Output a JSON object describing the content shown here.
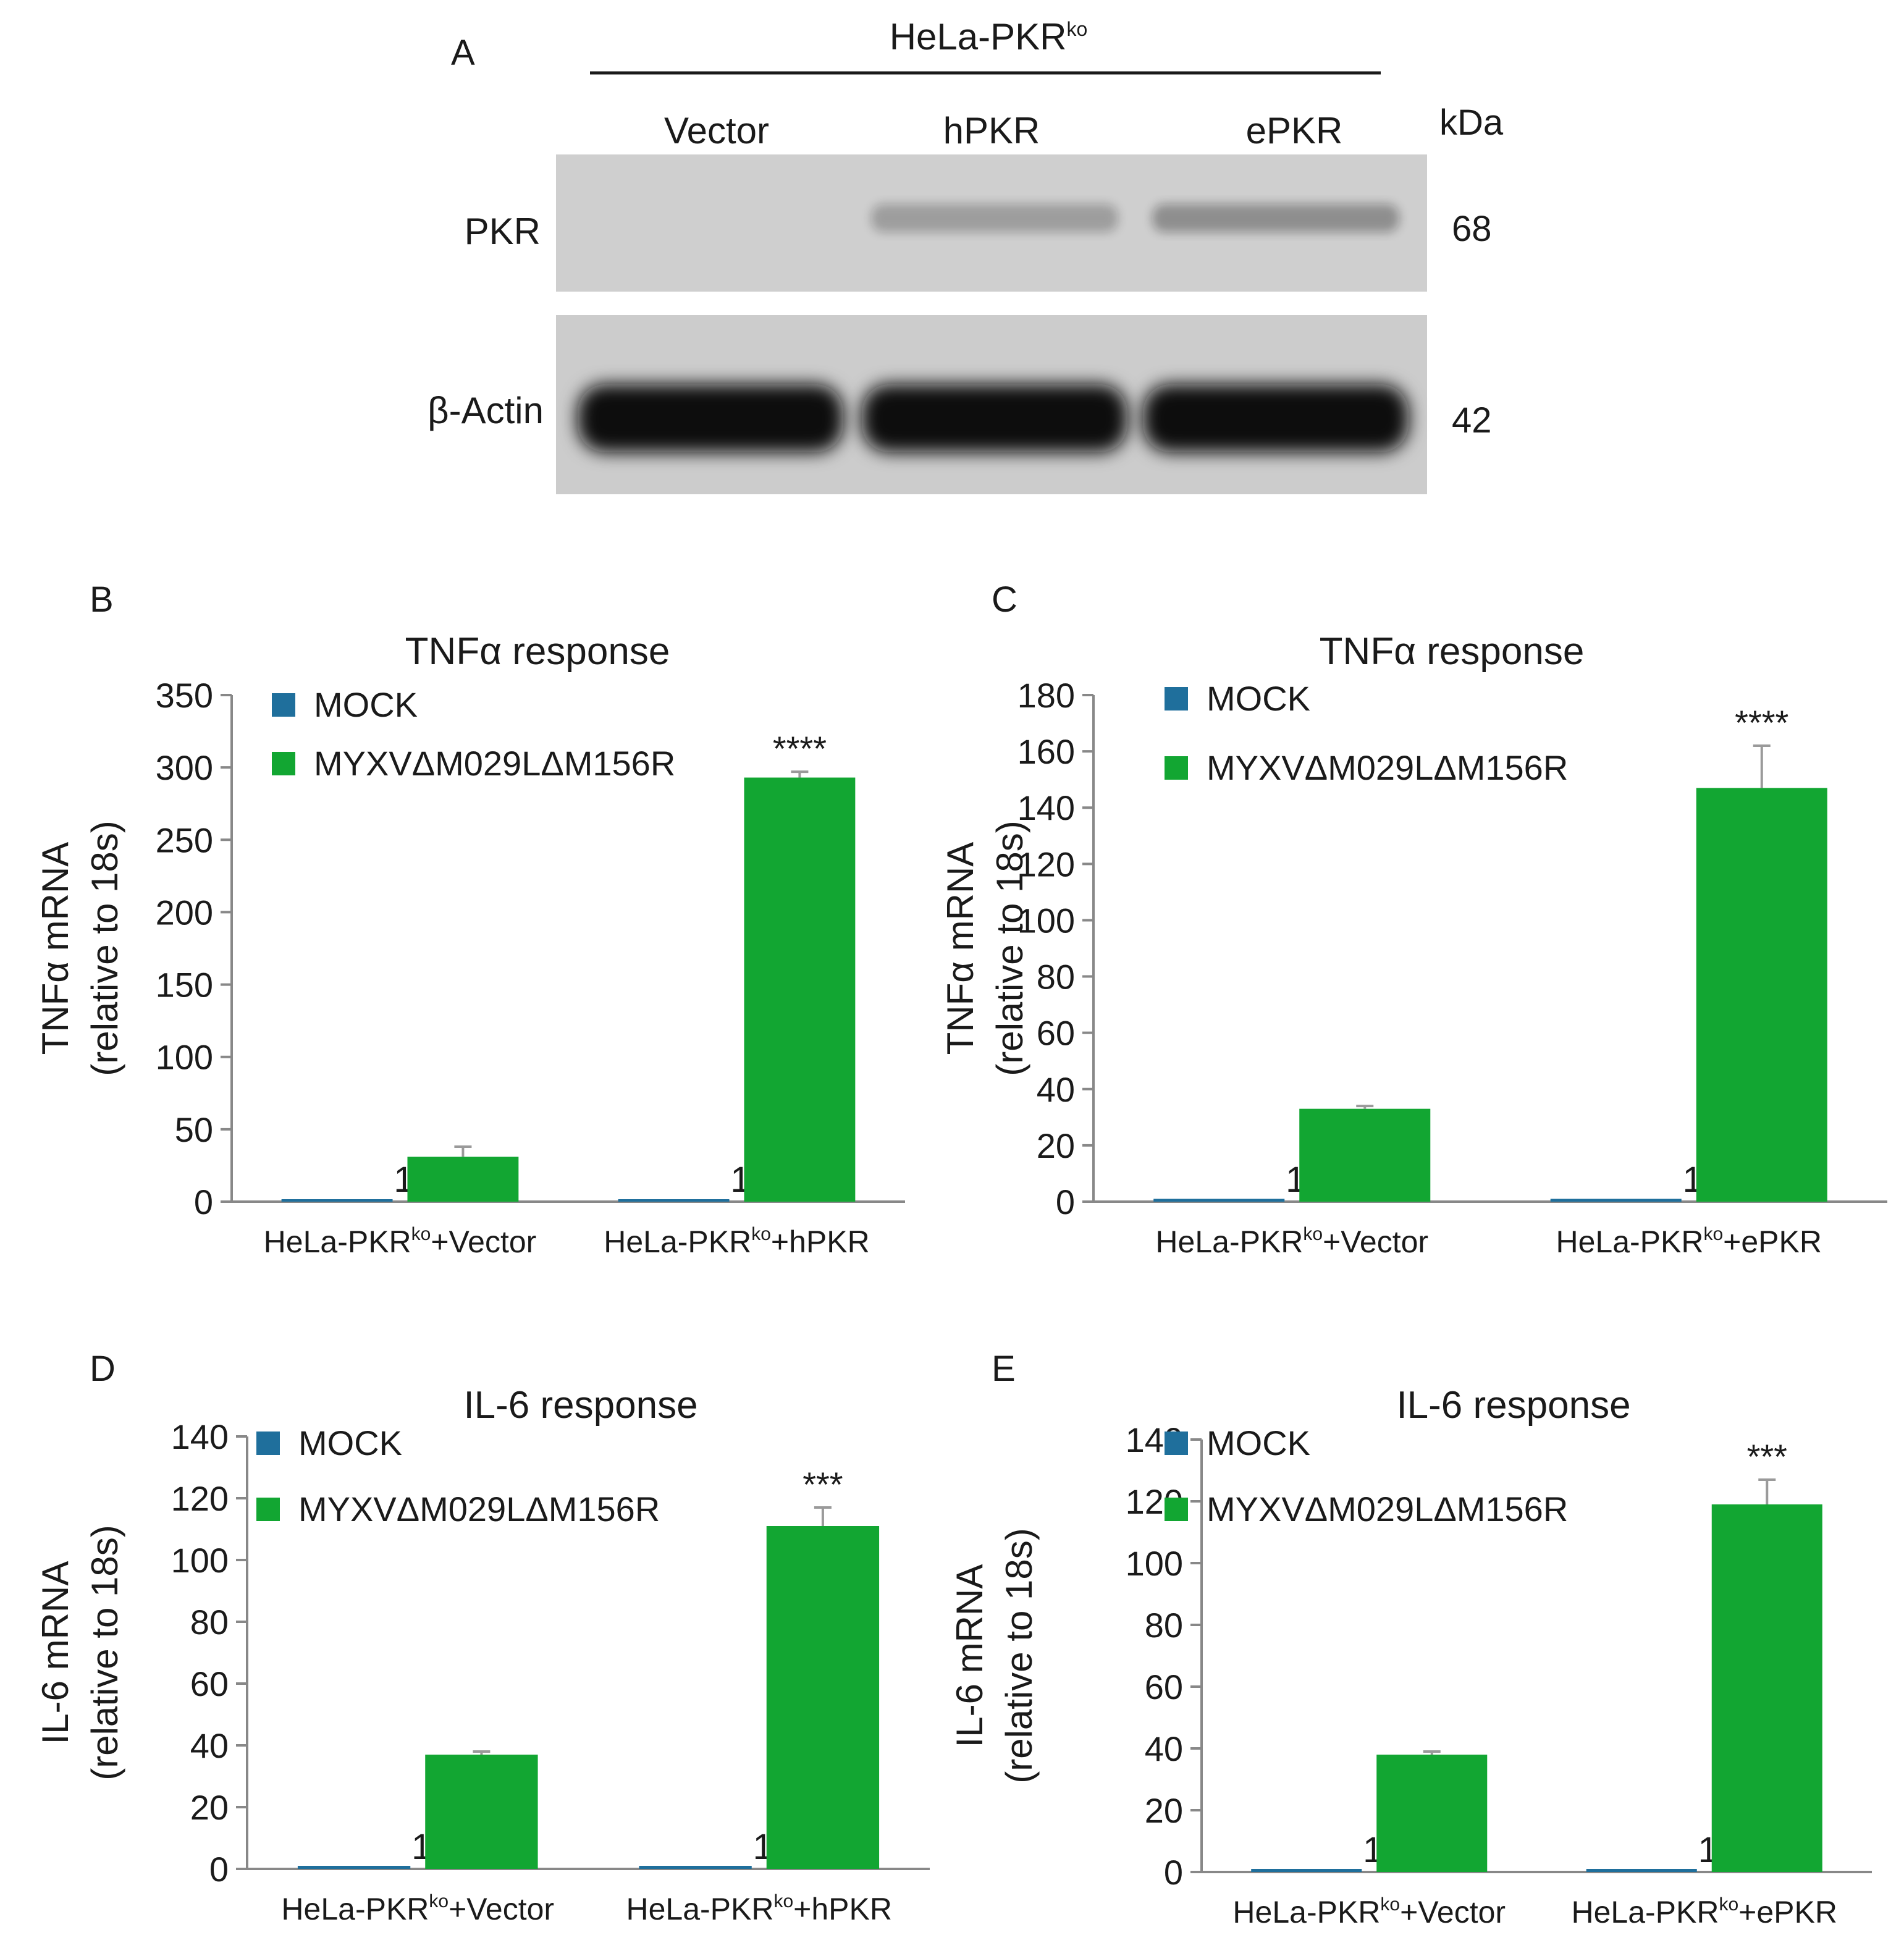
{
  "panel_a": {
    "letter": "A",
    "cell_line_main": "HeLa-PKR",
    "cell_line_sup": "ko",
    "lanes": [
      "Vector",
      "hPKR",
      "ePKR"
    ],
    "kda_label": "kDa",
    "rows": [
      {
        "label": "PKR",
        "kda": "68",
        "band_intensity": [
          0.0,
          0.45,
          0.6
        ]
      },
      {
        "label": "β-Actin",
        "kda": "42",
        "band_intensity": [
          1.0,
          1.0,
          1.0
        ]
      }
    ]
  },
  "colors": {
    "mock": "#1f6f9c",
    "myxv": "#12a632",
    "axis": "#888888",
    "blot_bg": "#cfcfcf",
    "band": "#111111"
  },
  "chart_data": [
    {
      "id": "B",
      "type": "bar",
      "letter": "B",
      "title": "TNFα response",
      "ylabel_line1": "TNFα mRNA",
      "ylabel_line2": "(relative to 18s)",
      "ylim": [
        0,
        350
      ],
      "yticks": [
        0,
        50,
        100,
        150,
        200,
        250,
        300,
        350
      ],
      "categories": [
        {
          "main": "HeLa-PKR",
          "sup": "ko",
          "suffix": "+Vector"
        },
        {
          "main": "HeLa-PKR",
          "sup": "ko",
          "suffix": "+hPKR"
        }
      ],
      "series": [
        {
          "name": "MOCK",
          "values": [
            1,
            1
          ],
          "errors": [
            0,
            0
          ],
          "value_labels": [
            "1",
            "1"
          ],
          "color": "#1f6f9c"
        },
        {
          "name": "MYXVΔM029LΔM156R",
          "values": [
            31,
            293
          ],
          "errors": [
            7,
            4
          ],
          "value_labels": [
            "",
            ""
          ],
          "color": "#12a632"
        }
      ],
      "annotations": [
        {
          "category_index": 1,
          "text": "****"
        }
      ]
    },
    {
      "id": "C",
      "type": "bar",
      "letter": "C",
      "title": "TNFα response",
      "ylabel_line1": "TNFα mRNA",
      "ylabel_line2": "(relative to 18s)",
      "ylim": [
        0,
        180
      ],
      "yticks": [
        0,
        20,
        40,
        60,
        80,
        100,
        120,
        140,
        160,
        180
      ],
      "categories": [
        {
          "main": "HeLa-PKR",
          "sup": "ko",
          "suffix": "+Vector"
        },
        {
          "main": "HeLa-PKR",
          "sup": "ko",
          "suffix": "+ePKR"
        }
      ],
      "series": [
        {
          "name": "MOCK",
          "values": [
            1,
            1
          ],
          "errors": [
            0,
            0
          ],
          "value_labels": [
            "1",
            "1"
          ],
          "color": "#1f6f9c"
        },
        {
          "name": "MYXVΔM029LΔM156R",
          "values": [
            33,
            147
          ],
          "errors": [
            1,
            15
          ],
          "value_labels": [
            "",
            ""
          ],
          "color": "#12a632"
        }
      ],
      "annotations": [
        {
          "category_index": 1,
          "text": "****"
        }
      ]
    },
    {
      "id": "D",
      "type": "bar",
      "letter": "D",
      "title": "IL-6 response",
      "ylabel_line1": "IL-6 mRNA",
      "ylabel_line2": "(relative to 18s)",
      "ylim": [
        0,
        140
      ],
      "yticks": [
        0,
        20,
        40,
        60,
        80,
        100,
        120,
        140
      ],
      "categories": [
        {
          "main": "HeLa-PKR",
          "sup": "ko",
          "suffix": "+Vector"
        },
        {
          "main": "HeLa-PKR",
          "sup": "ko",
          "suffix": "+hPKR"
        }
      ],
      "series": [
        {
          "name": "MOCK",
          "values": [
            1,
            1
          ],
          "errors": [
            0,
            0
          ],
          "value_labels": [
            "1",
            "1"
          ],
          "color": "#1f6f9c"
        },
        {
          "name": "MYXVΔM029LΔM156R",
          "values": [
            37,
            111
          ],
          "errors": [
            1,
            6
          ],
          "value_labels": [
            "",
            ""
          ],
          "color": "#12a632"
        }
      ],
      "annotations": [
        {
          "category_index": 1,
          "text": "***"
        }
      ]
    },
    {
      "id": "E",
      "type": "bar",
      "letter": "E",
      "title": "IL-6 response",
      "ylabel_line1": "IL-6 mRNA",
      "ylabel_line2": "(relative to 18s)",
      "ylim": [
        0,
        140
      ],
      "yticks": [
        0,
        20,
        40,
        60,
        80,
        100,
        120,
        140
      ],
      "categories": [
        {
          "main": "HeLa-PKR",
          "sup": "ko",
          "suffix": "+Vector"
        },
        {
          "main": "HeLa-PKR",
          "sup": "ko",
          "suffix": "+ePKR"
        }
      ],
      "series": [
        {
          "name": "MOCK",
          "values": [
            1,
            1
          ],
          "errors": [
            0,
            0
          ],
          "value_labels": [
            "1",
            "1"
          ],
          "color": "#1f6f9c"
        },
        {
          "name": "MYXVΔM029LΔM156R",
          "values": [
            38,
            119
          ],
          "errors": [
            1,
            8
          ],
          "value_labels": [
            "",
            ""
          ],
          "color": "#12a632"
        }
      ],
      "annotations": [
        {
          "category_index": 1,
          "text": "***"
        }
      ]
    }
  ]
}
